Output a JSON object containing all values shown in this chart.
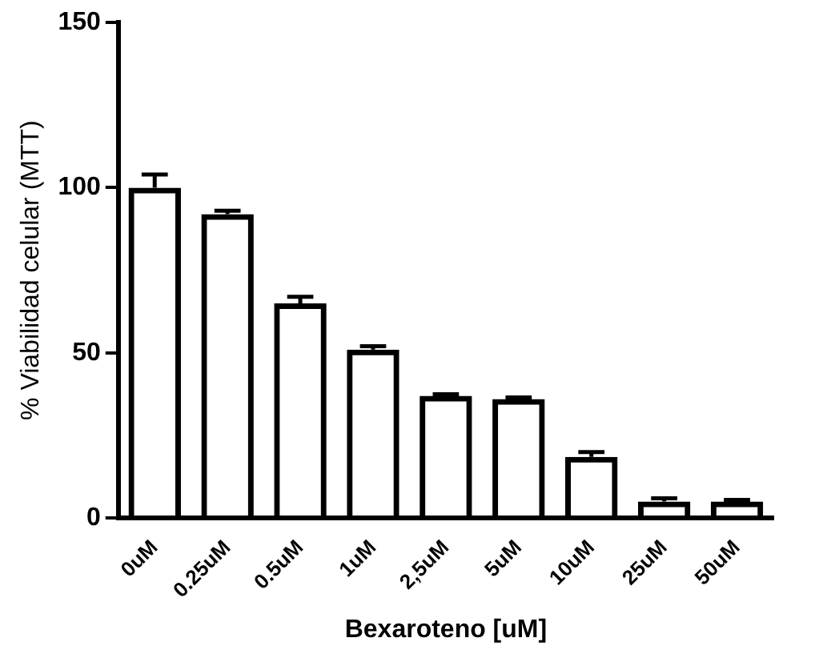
{
  "chart_data": {
    "type": "bar",
    "xlabel": "Bexaroteno [uM]",
    "ylabel": "% Viabilidad celular (MTT)",
    "categories": [
      "0uM",
      "0.25uM",
      "0.5uM",
      "1uM",
      "2,5uM",
      "5uM",
      "10uM",
      "25uM",
      "50uM"
    ],
    "values": [
      100,
      92,
      65,
      51,
      37,
      36,
      18.5,
      5,
      5
    ],
    "errors": [
      [
        100,
        104
      ],
      [
        92,
        93
      ],
      [
        65,
        67
      ],
      [
        51,
        52
      ],
      [
        37,
        37.5
      ],
      [
        36,
        36.5
      ],
      [
        18.5,
        20
      ],
      [
        5,
        6
      ],
      [
        5,
        5.5
      ]
    ],
    "color": "#000000",
    "ylim": [
      0,
      150
    ],
    "yticks": [
      0,
      50,
      100,
      150
    ],
    "grid": false,
    "legend": false
  }
}
